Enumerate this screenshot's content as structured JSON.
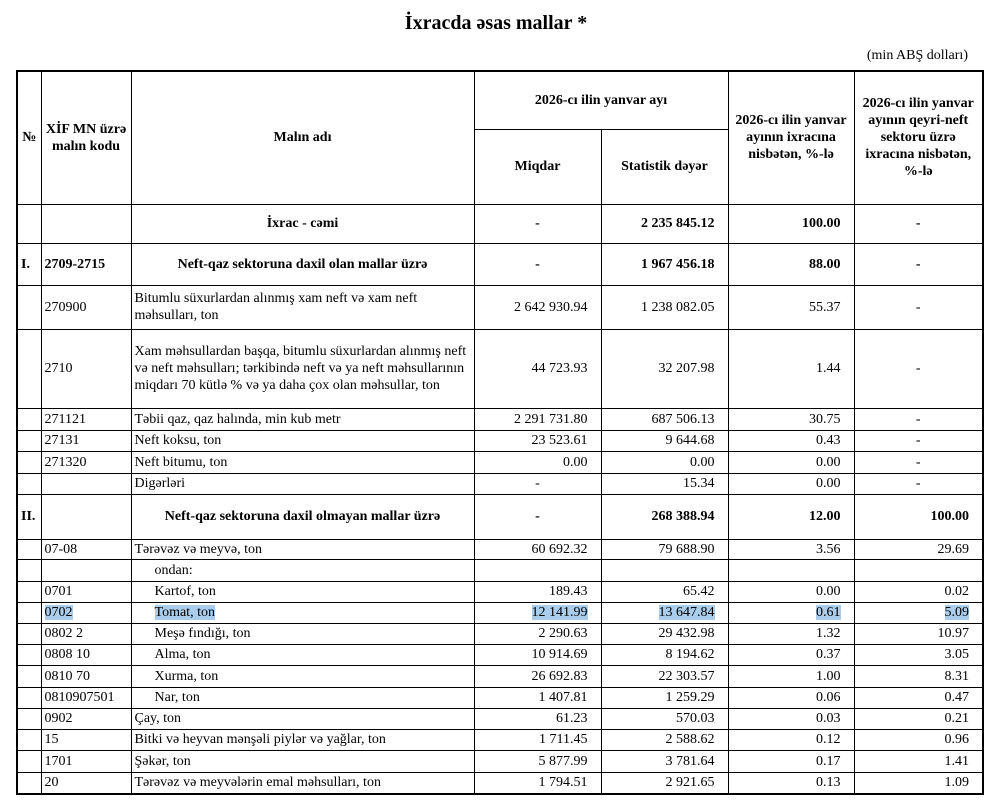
{
  "header": {
    "title": "İxracda əsas mallar *",
    "unit": "(min ABŞ dolları)"
  },
  "table": {
    "group_header": "2026-cı ilin yanvar ayı",
    "columns": [
      "№",
      "XİF MN üzrə malın kodu",
      "Malın adı",
      "Miqdar",
      "Statistik dəyər",
      "2026-cı ilin yanvar ayının ixracına nisbətən, %-lə",
      "2026-cı ilin yanvar ayının qeyri-neft sektoru üzrə ixracına nisbətən, %-lə"
    ],
    "rows": [
      [
        null,
        null,
        "İxrac - cəmi",
        "-",
        "2 235 845.12",
        "100.00",
        "-"
      ],
      [
        "I.",
        "2709-2715",
        "Neft-qaz sektoruna daxil olan mallar üzrə",
        "-",
        "1 967 456.18",
        "88.00",
        "-"
      ],
      [
        null,
        "270900",
        "Bitumlu süxurlardan alınmış xam neft və xam neft məhsulları, ton",
        "2 642 930.94",
        "1 238 082.05",
        "55.37",
        "-"
      ],
      [
        null,
        "2710",
        "Xam məhsullardan başqa, bitumlu süxurlardan alınmış neft və neft məhsulları; tərkibində neft və ya neft məhsullarının miqdarı 70 kütlə % və ya daha çox olan məhsullar, ton",
        "44 723.93",
        "32 207.98",
        "1.44",
        "-"
      ],
      [
        null,
        "271121",
        "Təbii qaz, qaz halında, min kub metr",
        "2 291 731.80",
        "687 506.13",
        "30.75",
        "-"
      ],
      [
        null,
        "27131",
        "Neft koksu, ton",
        "23 523.61",
        "9 644.68",
        "0.43",
        "-"
      ],
      [
        null,
        "271320",
        "Neft bitumu, ton",
        "0.00",
        "0.00",
        "0.00",
        "-"
      ],
      [
        null,
        null,
        "Digərləri",
        "-",
        "15.34",
        "0.00",
        "-"
      ],
      [
        "II.",
        null,
        "Neft-qaz sektoruna daxil olmayan mallar üzrə",
        "-",
        "268 388.94",
        "12.00",
        "100.00"
      ],
      [
        null,
        "07-08",
        "Tərəvəz və meyvə, ton",
        "60 692.32",
        "79 688.90",
        "3.56",
        "29.69"
      ],
      [
        null,
        null,
        "ondan:",
        null,
        null,
        null,
        null
      ],
      [
        null,
        "0701",
        "Kartof, ton",
        "189.43",
        "65.42",
        "0.00",
        "0.02"
      ],
      [
        null,
        "0702",
        "Tomat, ton",
        "12 141.99",
        "13 647.84",
        "0.61",
        "5.09"
      ],
      [
        null,
        "0802 2",
        "Meşə fındığı, ton",
        "2 290.63",
        "29 432.98",
        "1.32",
        "10.97"
      ],
      [
        null,
        "0808 10",
        "Alma, ton",
        "10 914.69",
        "8 194.62",
        "0.37",
        "3.05"
      ],
      [
        null,
        "0810 70",
        "Xurma, ton",
        "26 692.83",
        "22 303.57",
        "1.00",
        "8.31"
      ],
      [
        null,
        "0810907501",
        "Nar, ton",
        "1 407.81",
        "1 259.29",
        "0.06",
        "0.47"
      ],
      [
        null,
        "0902",
        "Çay, ton",
        "61.23",
        "570.03",
        "0.03",
        "0.21"
      ],
      [
        null,
        "15",
        "Bitki və heyvan mənşəli piylər və yağlar, ton",
        "1 711.45",
        "2 588.62",
        "0.12",
        "0.96"
      ],
      [
        null,
        "1701",
        "Şəkər, ton",
        "5 877.99",
        "3 781.64",
        "0.17",
        "1.41"
      ],
      [
        null,
        "20",
        "Tərəvəz və meyvələrin emal məhsulları, ton",
        "1 794.51",
        "2 921.65",
        "0.13",
        "1.09"
      ]
    ]
  }
}
